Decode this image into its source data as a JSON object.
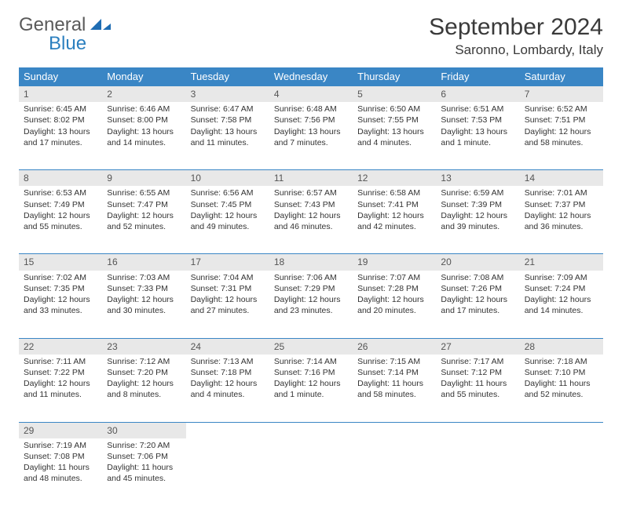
{
  "logo": {
    "gray": "General",
    "blue": "Blue"
  },
  "title": "September 2024",
  "location": "Saronno, Lombardy, Italy",
  "weekday_header_bg": "#3a86c5",
  "daynum_bg": "#e8e8e8",
  "weekdays": [
    "Sunday",
    "Monday",
    "Tuesday",
    "Wednesday",
    "Thursday",
    "Friday",
    "Saturday"
  ],
  "weeks": [
    [
      {
        "n": "1",
        "sr": "Sunrise: 6:45 AM",
        "ss": "Sunset: 8:02 PM",
        "d1": "Daylight: 13 hours",
        "d2": "and 17 minutes."
      },
      {
        "n": "2",
        "sr": "Sunrise: 6:46 AM",
        "ss": "Sunset: 8:00 PM",
        "d1": "Daylight: 13 hours",
        "d2": "and 14 minutes."
      },
      {
        "n": "3",
        "sr": "Sunrise: 6:47 AM",
        "ss": "Sunset: 7:58 PM",
        "d1": "Daylight: 13 hours",
        "d2": "and 11 minutes."
      },
      {
        "n": "4",
        "sr": "Sunrise: 6:48 AM",
        "ss": "Sunset: 7:56 PM",
        "d1": "Daylight: 13 hours",
        "d2": "and 7 minutes."
      },
      {
        "n": "5",
        "sr": "Sunrise: 6:50 AM",
        "ss": "Sunset: 7:55 PM",
        "d1": "Daylight: 13 hours",
        "d2": "and 4 minutes."
      },
      {
        "n": "6",
        "sr": "Sunrise: 6:51 AM",
        "ss": "Sunset: 7:53 PM",
        "d1": "Daylight: 13 hours",
        "d2": "and 1 minute."
      },
      {
        "n": "7",
        "sr": "Sunrise: 6:52 AM",
        "ss": "Sunset: 7:51 PM",
        "d1": "Daylight: 12 hours",
        "d2": "and 58 minutes."
      }
    ],
    [
      {
        "n": "8",
        "sr": "Sunrise: 6:53 AM",
        "ss": "Sunset: 7:49 PM",
        "d1": "Daylight: 12 hours",
        "d2": "and 55 minutes."
      },
      {
        "n": "9",
        "sr": "Sunrise: 6:55 AM",
        "ss": "Sunset: 7:47 PM",
        "d1": "Daylight: 12 hours",
        "d2": "and 52 minutes."
      },
      {
        "n": "10",
        "sr": "Sunrise: 6:56 AM",
        "ss": "Sunset: 7:45 PM",
        "d1": "Daylight: 12 hours",
        "d2": "and 49 minutes."
      },
      {
        "n": "11",
        "sr": "Sunrise: 6:57 AM",
        "ss": "Sunset: 7:43 PM",
        "d1": "Daylight: 12 hours",
        "d2": "and 46 minutes."
      },
      {
        "n": "12",
        "sr": "Sunrise: 6:58 AM",
        "ss": "Sunset: 7:41 PM",
        "d1": "Daylight: 12 hours",
        "d2": "and 42 minutes."
      },
      {
        "n": "13",
        "sr": "Sunrise: 6:59 AM",
        "ss": "Sunset: 7:39 PM",
        "d1": "Daylight: 12 hours",
        "d2": "and 39 minutes."
      },
      {
        "n": "14",
        "sr": "Sunrise: 7:01 AM",
        "ss": "Sunset: 7:37 PM",
        "d1": "Daylight: 12 hours",
        "d2": "and 36 minutes."
      }
    ],
    [
      {
        "n": "15",
        "sr": "Sunrise: 7:02 AM",
        "ss": "Sunset: 7:35 PM",
        "d1": "Daylight: 12 hours",
        "d2": "and 33 minutes."
      },
      {
        "n": "16",
        "sr": "Sunrise: 7:03 AM",
        "ss": "Sunset: 7:33 PM",
        "d1": "Daylight: 12 hours",
        "d2": "and 30 minutes."
      },
      {
        "n": "17",
        "sr": "Sunrise: 7:04 AM",
        "ss": "Sunset: 7:31 PM",
        "d1": "Daylight: 12 hours",
        "d2": "and 27 minutes."
      },
      {
        "n": "18",
        "sr": "Sunrise: 7:06 AM",
        "ss": "Sunset: 7:29 PM",
        "d1": "Daylight: 12 hours",
        "d2": "and 23 minutes."
      },
      {
        "n": "19",
        "sr": "Sunrise: 7:07 AM",
        "ss": "Sunset: 7:28 PM",
        "d1": "Daylight: 12 hours",
        "d2": "and 20 minutes."
      },
      {
        "n": "20",
        "sr": "Sunrise: 7:08 AM",
        "ss": "Sunset: 7:26 PM",
        "d1": "Daylight: 12 hours",
        "d2": "and 17 minutes."
      },
      {
        "n": "21",
        "sr": "Sunrise: 7:09 AM",
        "ss": "Sunset: 7:24 PM",
        "d1": "Daylight: 12 hours",
        "d2": "and 14 minutes."
      }
    ],
    [
      {
        "n": "22",
        "sr": "Sunrise: 7:11 AM",
        "ss": "Sunset: 7:22 PM",
        "d1": "Daylight: 12 hours",
        "d2": "and 11 minutes."
      },
      {
        "n": "23",
        "sr": "Sunrise: 7:12 AM",
        "ss": "Sunset: 7:20 PM",
        "d1": "Daylight: 12 hours",
        "d2": "and 8 minutes."
      },
      {
        "n": "24",
        "sr": "Sunrise: 7:13 AM",
        "ss": "Sunset: 7:18 PM",
        "d1": "Daylight: 12 hours",
        "d2": "and 4 minutes."
      },
      {
        "n": "25",
        "sr": "Sunrise: 7:14 AM",
        "ss": "Sunset: 7:16 PM",
        "d1": "Daylight: 12 hours",
        "d2": "and 1 minute."
      },
      {
        "n": "26",
        "sr": "Sunrise: 7:15 AM",
        "ss": "Sunset: 7:14 PM",
        "d1": "Daylight: 11 hours",
        "d2": "and 58 minutes."
      },
      {
        "n": "27",
        "sr": "Sunrise: 7:17 AM",
        "ss": "Sunset: 7:12 PM",
        "d1": "Daylight: 11 hours",
        "d2": "and 55 minutes."
      },
      {
        "n": "28",
        "sr": "Sunrise: 7:18 AM",
        "ss": "Sunset: 7:10 PM",
        "d1": "Daylight: 11 hours",
        "d2": "and 52 minutes."
      }
    ],
    [
      {
        "n": "29",
        "sr": "Sunrise: 7:19 AM",
        "ss": "Sunset: 7:08 PM",
        "d1": "Daylight: 11 hours",
        "d2": "and 48 minutes."
      },
      {
        "n": "30",
        "sr": "Sunrise: 7:20 AM",
        "ss": "Sunset: 7:06 PM",
        "d1": "Daylight: 11 hours",
        "d2": "and 45 minutes."
      },
      null,
      null,
      null,
      null,
      null
    ]
  ]
}
